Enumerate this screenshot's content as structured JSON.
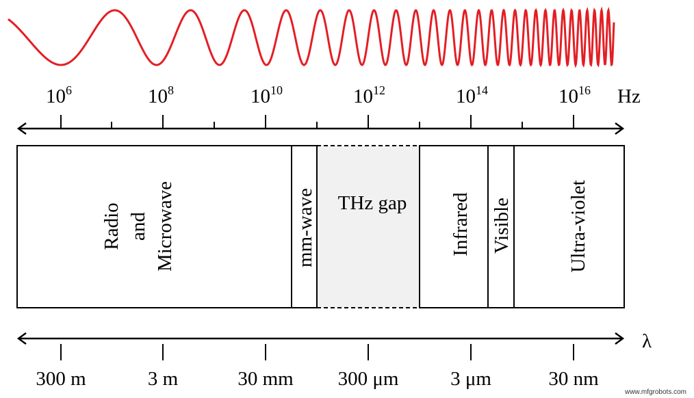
{
  "wave": {
    "color": "#e31e24"
  },
  "frequency_axis": {
    "unit": "Hz",
    "ticks": [
      {
        "base": "10",
        "exp": "6"
      },
      {
        "base": "10",
        "exp": "8"
      },
      {
        "base": "10",
        "exp": "10"
      },
      {
        "base": "10",
        "exp": "12"
      },
      {
        "base": "10",
        "exp": "14"
      },
      {
        "base": "10",
        "exp": "16"
      }
    ]
  },
  "bands": [
    {
      "label": "Radio",
      "label2": "and",
      "label3": "Microwave"
    },
    {
      "label": "mm-wave"
    },
    {
      "label": "THz gap",
      "fill": "#f1f1f1"
    },
    {
      "label": "Infrared"
    },
    {
      "label": "Visible"
    },
    {
      "label": "Ultra-violet"
    }
  ],
  "wavelength_axis": {
    "unit": "λ",
    "ticks": [
      "300 m",
      "3 m",
      "30 mm",
      "300 μm",
      "3 μm",
      "30 nm"
    ]
  },
  "watermark": "www.mfgrobots.com"
}
